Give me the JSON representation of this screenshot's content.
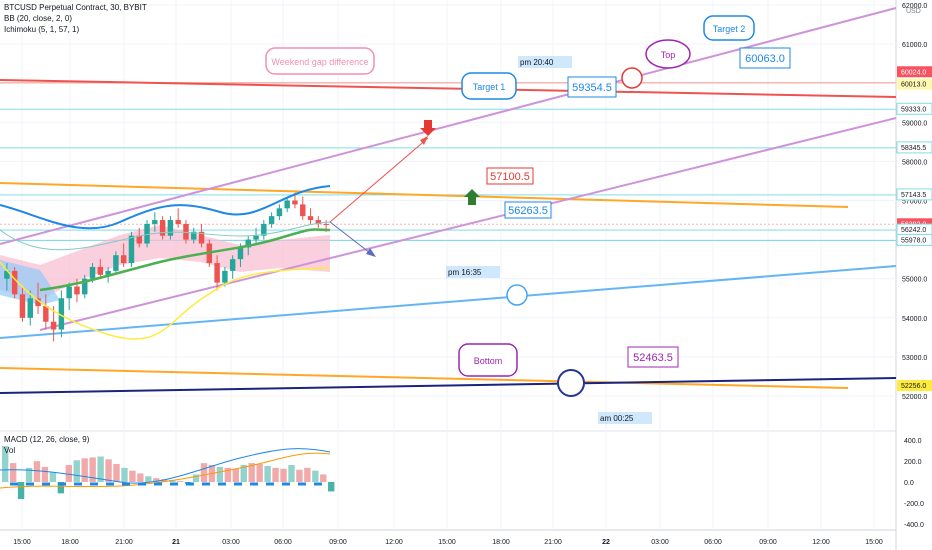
{
  "chart": {
    "symbol_title": "BTCUSD Perpetual Contract, 30, BYBIT",
    "indicators": [
      "BB (20, close, 2, 0)",
      "Ichimoku (5, 1, 57, 1)"
    ],
    "macd_label": "MACD (12, 26, close, 9)",
    "vol_label": "Vol",
    "currency": "USD"
  },
  "chart_data": {
    "type": "candlestick",
    "price_axis": {
      "ticks": [
        "62000.0",
        "61000.0",
        "60000.0",
        "59000.0",
        "58000.0",
        "57000.0",
        "56000.0",
        "55000.0",
        "54000.0",
        "53000.0",
        "52000.0"
      ],
      "ylim": [
        51600,
        62000
      ]
    },
    "time_axis": {
      "ticks": [
        "15:00",
        "18:00",
        "21:00",
        "21",
        "03:00",
        "06:00",
        "09:00",
        "12:00",
        "15:00",
        "18:00",
        "21:00",
        "22",
        "03:00",
        "06:00",
        "09:00",
        "12:00",
        "15:00"
      ]
    },
    "macd_axis": {
      "ticks": [
        "400.0",
        "200.0",
        "0.0",
        "-200.0",
        "-400.0"
      ]
    },
    "price_tags": [
      {
        "value": "60024.0",
        "color": "#f7525f"
      },
      {
        "value": "60013.0",
        "color": "#fff9b0"
      },
      {
        "value": "59333.0",
        "color": "#ffffff"
      },
      {
        "value": "58345.5",
        "color": "#ffffff"
      },
      {
        "value": "57143.5",
        "color": "#ffffff"
      },
      {
        "value": "56392.0",
        "color": "#f7525f"
      },
      {
        "value": "05:59",
        "color": "#f7525f"
      },
      {
        "value": "56242.0",
        "color": "#ffffff"
      },
      {
        "value": "55978.0",
        "color": "#ffffff"
      },
      {
        "value": "52256.0",
        "color": "#ffeb3b"
      }
    ],
    "annotations": [
      {
        "text": "Weekend gap difference",
        "color": "#f48fb1"
      },
      {
        "text": "Target 1",
        "color": "#1e88e5"
      },
      {
        "text": "Target 2",
        "color": "#1e88e5"
      },
      {
        "text": "Top",
        "color": "#9c27b0"
      },
      {
        "text": "Bottom",
        "color": "#9c27b0"
      },
      {
        "text": "59354.5",
        "color": "#1e88e5"
      },
      {
        "text": "60063.0",
        "color": "#1e88e5"
      },
      {
        "text": "57100.5",
        "color": "#e53935"
      },
      {
        "text": "56263.5",
        "color": "#1e88e5"
      },
      {
        "text": "52463.5",
        "color": "#9c27b0"
      }
    ],
    "time_notes": [
      "pm 20:40",
      "pm 16:35",
      "am 00:25"
    ],
    "candles": [
      {
        "o": 55000,
        "h": 55400,
        "l": 54700,
        "c": 55200
      },
      {
        "o": 55200,
        "h": 55300,
        "l": 54500,
        "c": 54600
      },
      {
        "o": 54600,
        "h": 54800,
        "l": 53900,
        "c": 54000
      },
      {
        "o": 54000,
        "h": 54700,
        "l": 53800,
        "c": 54500
      },
      {
        "o": 54500,
        "h": 54900,
        "l": 54100,
        "c": 54300
      },
      {
        "o": 54300,
        "h": 54600,
        "l": 53700,
        "c": 53900
      },
      {
        "o": 53900,
        "h": 54300,
        "l": 53400,
        "c": 53700
      },
      {
        "o": 53700,
        "h": 54700,
        "l": 53500,
        "c": 54500
      },
      {
        "o": 54500,
        "h": 54900,
        "l": 54200,
        "c": 54800
      },
      {
        "o": 54800,
        "h": 55000,
        "l": 54400,
        "c": 54600
      },
      {
        "o": 54600,
        "h": 55100,
        "l": 54500,
        "c": 55000
      },
      {
        "o": 55000,
        "h": 55400,
        "l": 54900,
        "c": 55300
      },
      {
        "o": 55300,
        "h": 55500,
        "l": 55000,
        "c": 55100
      },
      {
        "o": 55100,
        "h": 55300,
        "l": 54900,
        "c": 55200
      },
      {
        "o": 55200,
        "h": 55700,
        "l": 55100,
        "c": 55600
      },
      {
        "o": 55600,
        "h": 55900,
        "l": 55300,
        "c": 55400
      },
      {
        "o": 55400,
        "h": 56200,
        "l": 55300,
        "c": 56100
      },
      {
        "o": 56100,
        "h": 56300,
        "l": 55800,
        "c": 55900
      },
      {
        "o": 55900,
        "h": 56500,
        "l": 55800,
        "c": 56400
      },
      {
        "o": 56400,
        "h": 56700,
        "l": 56200,
        "c": 56500
      },
      {
        "o": 56500,
        "h": 56600,
        "l": 56000,
        "c": 56100
      },
      {
        "o": 56100,
        "h": 56600,
        "l": 56000,
        "c": 56500
      },
      {
        "o": 56500,
        "h": 56800,
        "l": 56300,
        "c": 56400
      },
      {
        "o": 56400,
        "h": 56500,
        "l": 55900,
        "c": 56000
      },
      {
        "o": 56000,
        "h": 56300,
        "l": 55900,
        "c": 56200
      },
      {
        "o": 56200,
        "h": 56400,
        "l": 55800,
        "c": 55900
      },
      {
        "o": 55900,
        "h": 56000,
        "l": 55300,
        "c": 55400
      },
      {
        "o": 55400,
        "h": 55600,
        "l": 54700,
        "c": 54900
      },
      {
        "o": 54900,
        "h": 55300,
        "l": 54800,
        "c": 55200
      },
      {
        "o": 55200,
        "h": 55600,
        "l": 55000,
        "c": 55500
      },
      {
        "o": 55500,
        "h": 55900,
        "l": 55300,
        "c": 55800
      },
      {
        "o": 55800,
        "h": 56100,
        "l": 55600,
        "c": 56000
      },
      {
        "o": 56000,
        "h": 56300,
        "l": 55900,
        "c": 56100
      },
      {
        "o": 56100,
        "h": 56500,
        "l": 56000,
        "c": 56400
      },
      {
        "o": 56400,
        "h": 56700,
        "l": 56300,
        "c": 56600
      },
      {
        "o": 56600,
        "h": 56900,
        "l": 56500,
        "c": 56800
      },
      {
        "o": 56800,
        "h": 57100,
        "l": 56700,
        "c": 57000
      },
      {
        "o": 57000,
        "h": 57200,
        "l": 56800,
        "c": 56900
      },
      {
        "o": 56900,
        "h": 57100,
        "l": 56500,
        "c": 56600
      },
      {
        "o": 56600,
        "h": 56800,
        "l": 56400,
        "c": 56500
      },
      {
        "o": 56500,
        "h": 56600,
        "l": 56300,
        "c": 56400
      },
      {
        "o": 56400,
        "h": 56500,
        "l": 56200,
        "c": 56392
      }
    ],
    "macd_hist": [
      380,
      200,
      -180,
      150,
      220,
      160,
      100,
      -120,
      180,
      230,
      250,
      260,
      270,
      240,
      190,
      150,
      120,
      90,
      60,
      40,
      30,
      20,
      10,
      -20,
      80,
      200,
      180,
      160,
      150,
      140,
      180,
      200,
      190,
      170,
      150,
      140,
      180,
      130,
      150,
      120,
      80,
      -100
    ]
  }
}
